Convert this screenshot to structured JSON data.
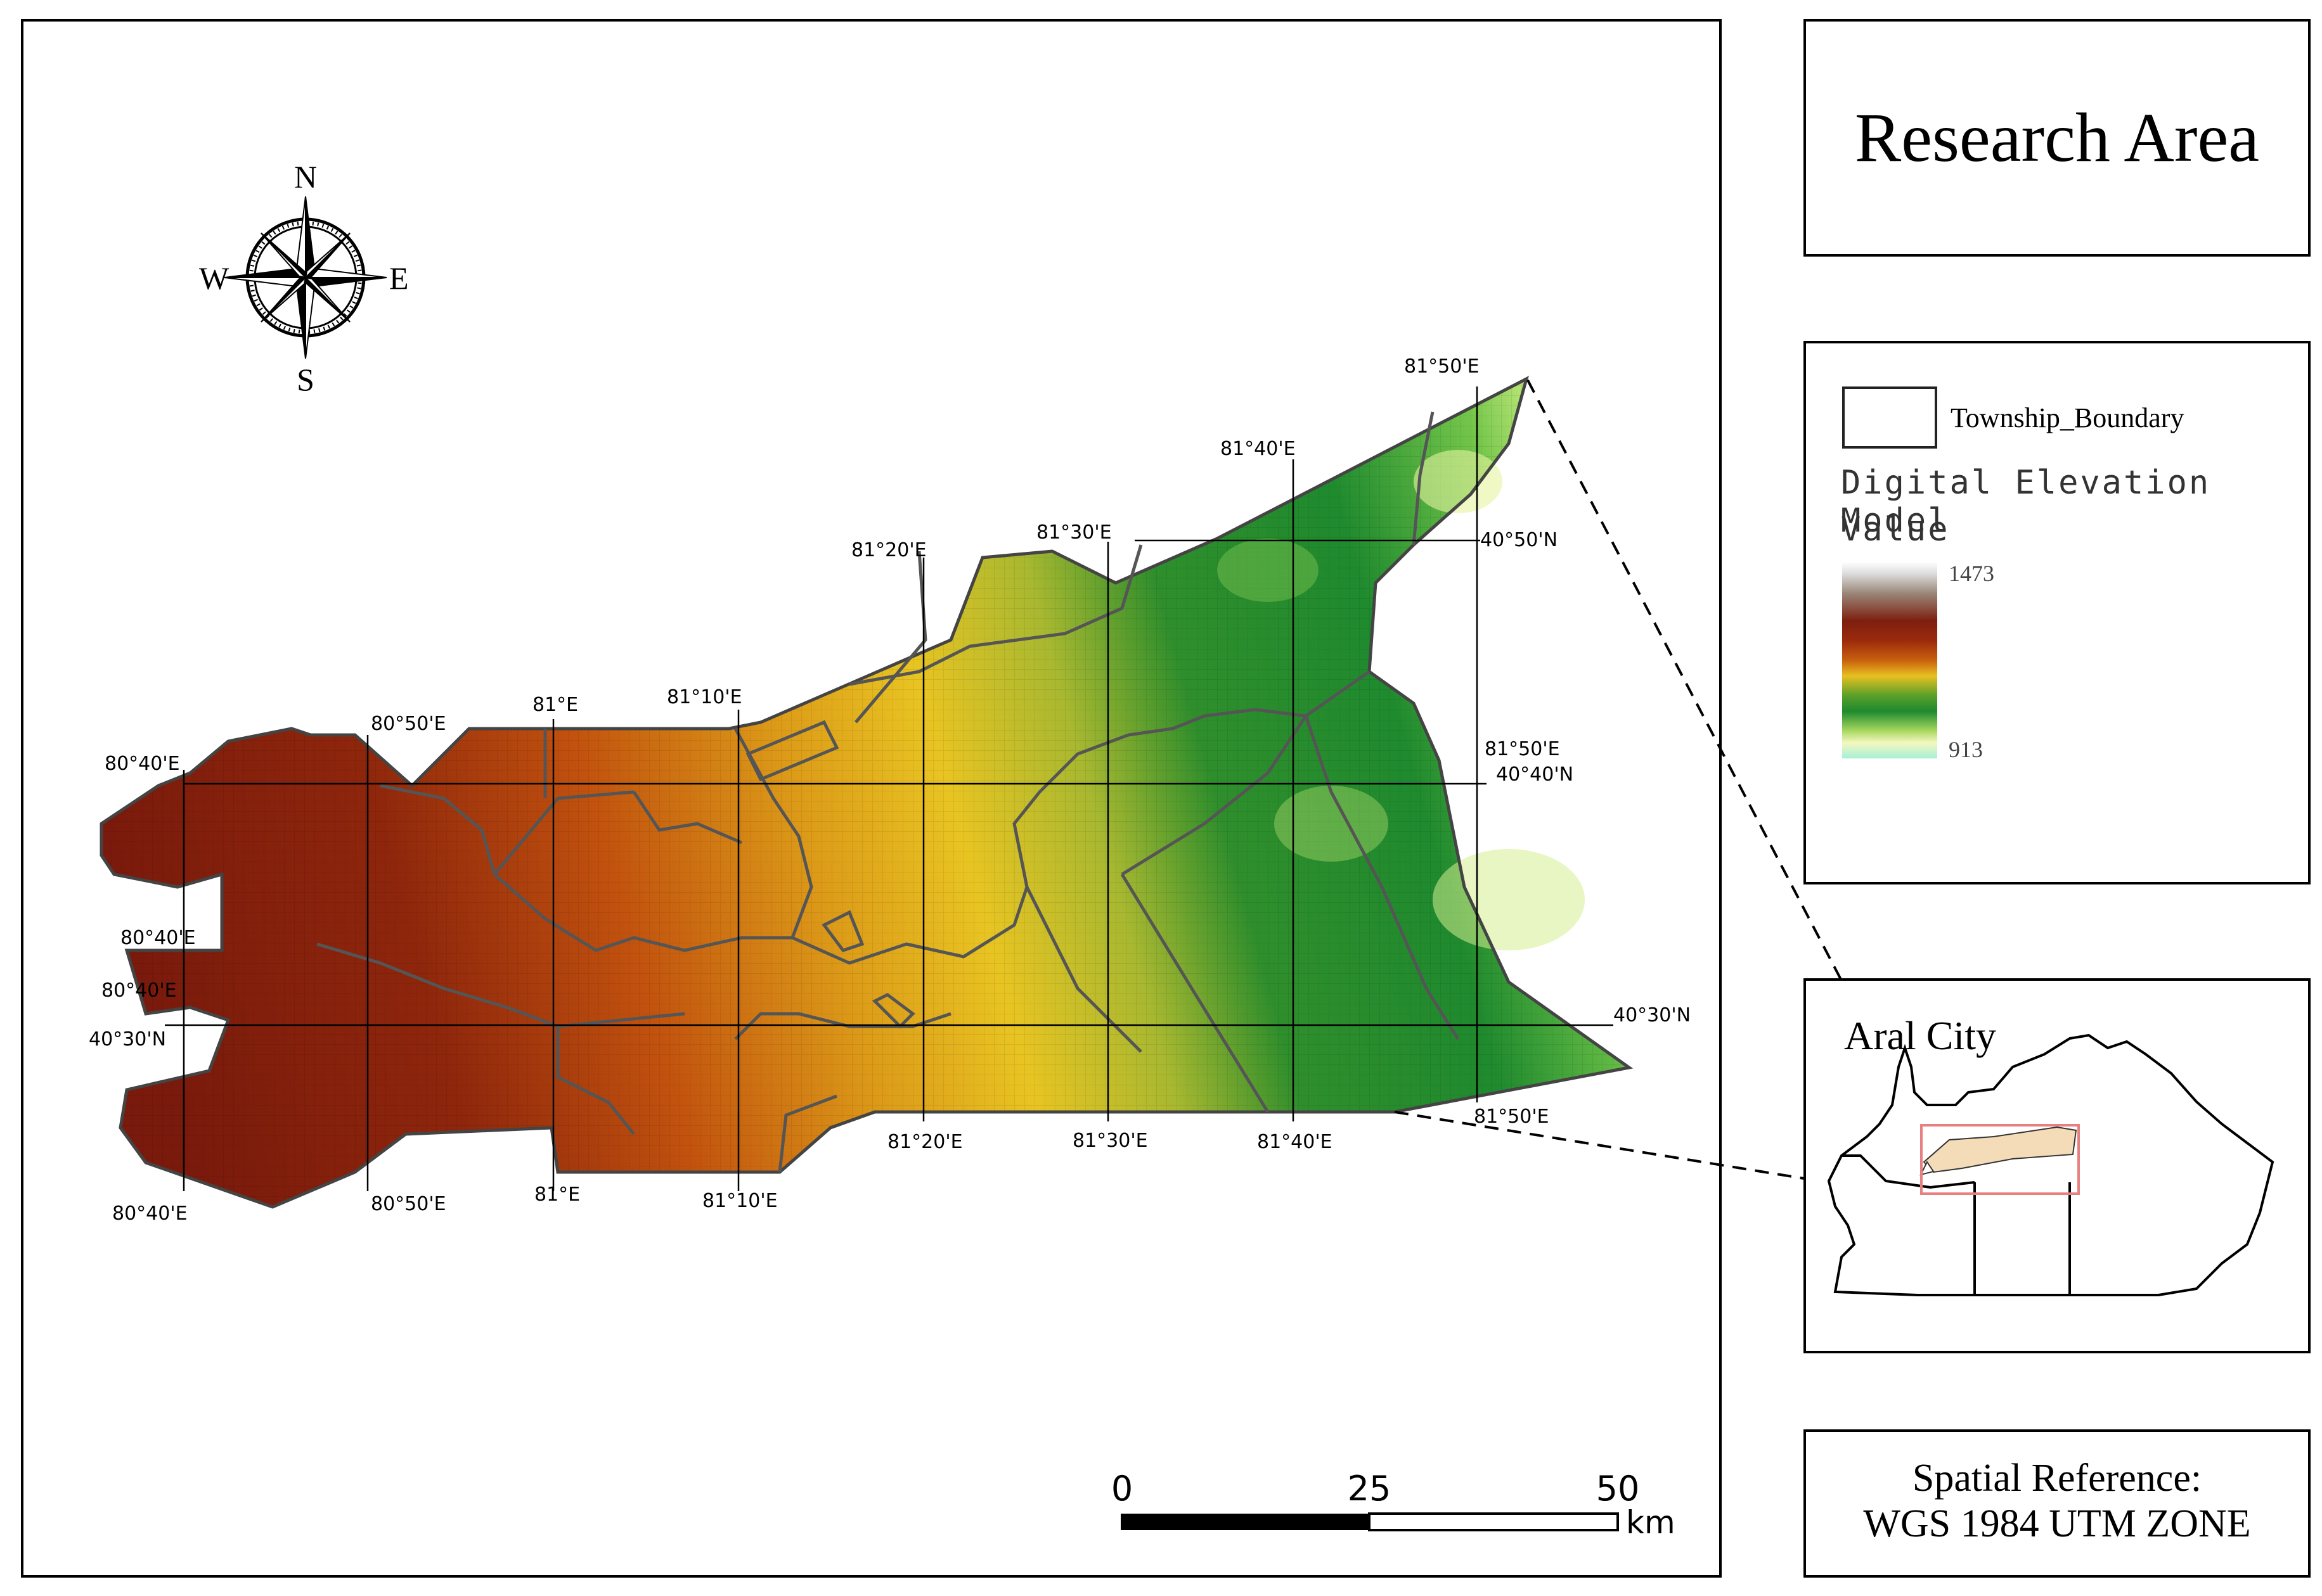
{
  "title": "Research Area",
  "legend": {
    "boundary_label": "Township_Boundary",
    "layer_label": "Digital Elevation Model",
    "value_label": "Value",
    "max_value": "1473",
    "min_value": "913"
  },
  "inset": {
    "title": "Aral City"
  },
  "spatial_reference": {
    "line1": "Spatial Reference:",
    "line2": "WGS 1984 UTM ZONE"
  },
  "compass": {
    "n": "N",
    "s": "S",
    "e": "E",
    "w": "W"
  },
  "scale_bar": {
    "labels": [
      "0",
      "25",
      "50"
    ],
    "unit": "km"
  },
  "graticule": {
    "top_lon": [
      "80°50'E",
      "81°E",
      "81°10'E",
      "81°20'E",
      "81°30'E",
      "81°40'E",
      "81°50'E"
    ],
    "bottom_lon": [
      "80°40'E",
      "80°50'E",
      "81°E",
      "81°10'E",
      "81°20'E",
      "81°30'E",
      "81°40'E",
      "81°50'E"
    ],
    "left_labels": [
      "80°40'E",
      "80°40'E",
      "80°40'E",
      "40°30'N"
    ],
    "right_lat": [
      "40°50'N",
      "40°40'N",
      "40°30'N"
    ],
    "right_lon": [
      "81°50'E"
    ]
  },
  "colors": {
    "dem_high": "#7a1a0c",
    "dem_mid_high": "#c85a10",
    "dem_mid": "#e8c020",
    "dem_low": "#1f8a2e",
    "dem_lowest": "#c8ec80",
    "inset_fill": "#f5dcb8",
    "inset_box": "#e88080"
  }
}
